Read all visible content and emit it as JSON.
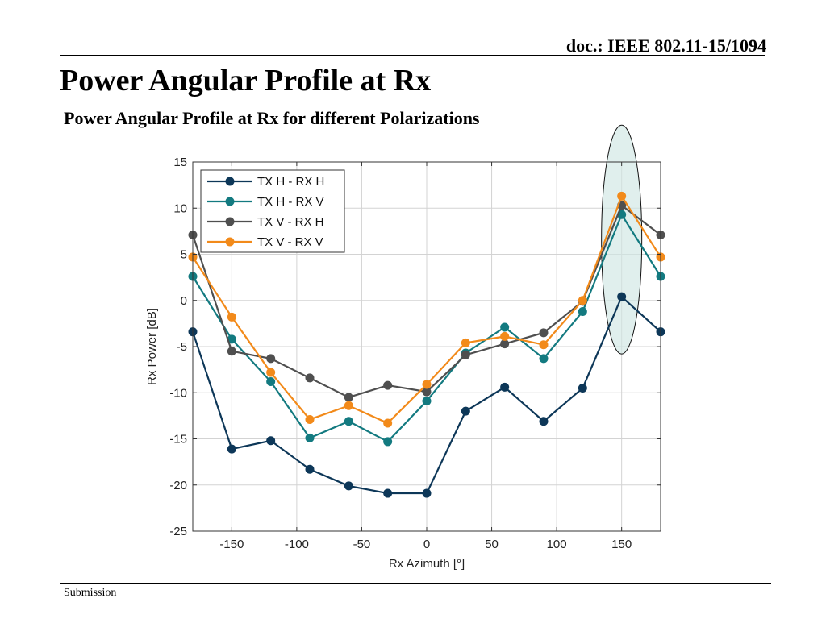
{
  "header": {
    "doc_ref": "doc.: IEEE 802.11-15/1094",
    "title": "Power Angular Profile at Rx",
    "subtitle": "Power Angular Profile at Rx for different Polarizations"
  },
  "footer": {
    "label": "Submission"
  },
  "colors": {
    "tx_h_rx_h": "#0d3758",
    "tx_h_rx_v": "#137a80",
    "tx_v_rx_h": "#4f4f4f",
    "tx_v_rx_v": "#f28a1a",
    "highlight_fill": "#cfe7e3",
    "grid": "#d3d3d3"
  },
  "chart_data": {
    "type": "line",
    "title": "",
    "xlabel": "Rx Azimuth [°]",
    "ylabel": "Rx Power [dB]",
    "xlim": [
      -180,
      180
    ],
    "ylim": [
      -25,
      15
    ],
    "xticks": [
      -150,
      -100,
      -50,
      0,
      50,
      100,
      150
    ],
    "yticks": [
      15,
      10,
      5,
      0,
      -5,
      -10,
      -15,
      -20,
      -25
    ],
    "grid": true,
    "legend_position": "top-left",
    "x": [
      -180,
      -150,
      -120,
      -90,
      -60,
      -30,
      0,
      30,
      60,
      90,
      120,
      150,
      180
    ],
    "series": [
      {
        "name": "TX H - RX H",
        "values": [
          -3.4,
          -16.1,
          -15.2,
          -18.3,
          -20.1,
          -20.9,
          -20.9,
          -12.0,
          -9.4,
          -13.1,
          -9.5,
          0.4,
          -3.4
        ]
      },
      {
        "name": "TX H - RX V",
        "values": [
          2.6,
          -4.2,
          -8.8,
          -14.9,
          -13.1,
          -15.3,
          -10.9,
          -5.7,
          -2.9,
          -6.3,
          -1.2,
          9.3,
          2.6
        ]
      },
      {
        "name": "TX V - RX H",
        "values": [
          7.1,
          -5.5,
          -6.3,
          -8.4,
          -10.5,
          -9.2,
          -9.9,
          -5.9,
          -4.7,
          -3.5,
          -0.1,
          10.3,
          7.1
        ]
      },
      {
        "name": "TX V - RX V",
        "values": [
          4.7,
          -1.8,
          -7.8,
          -12.9,
          -11.4,
          -13.3,
          -9.1,
          -4.6,
          -3.9,
          -4.8,
          0.0,
          11.3,
          4.7
        ]
      }
    ],
    "annotations": [
      {
        "type": "highlight-ellipse",
        "x": 150,
        "y_range": [
          -5.8,
          19.0
        ]
      }
    ]
  }
}
